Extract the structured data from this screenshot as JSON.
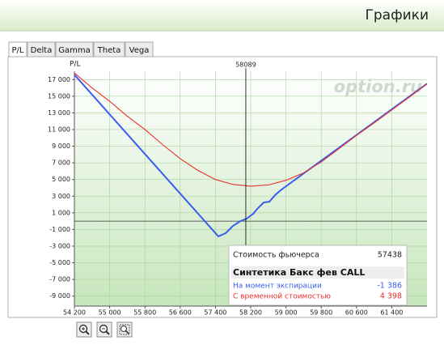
{
  "header": {
    "title": "Графики"
  },
  "tabs": [
    "P/L",
    "Delta",
    "Gamma",
    "Theta",
    "Vega"
  ],
  "chart_data": {
    "type": "line",
    "y_label": "P/L",
    "watermark": "option.ru",
    "xlim": [
      54200,
      62200
    ],
    "ylim": [
      -10200,
      18000
    ],
    "xticks": [
      {
        "value": 54200,
        "label": "54 200"
      },
      {
        "value": 55000,
        "label": "55 000"
      },
      {
        "value": 55800,
        "label": "55 800"
      },
      {
        "value": 56600,
        "label": "56 600"
      },
      {
        "value": 57400,
        "label": "57 400"
      },
      {
        "value": 58200,
        "label": "58 200"
      },
      {
        "value": 59000,
        "label": "59 000"
      },
      {
        "value": 59800,
        "label": "59 800"
      },
      {
        "value": 60600,
        "label": "60 600"
      },
      {
        "value": 61400,
        "label": "61 400"
      }
    ],
    "yticks": [
      {
        "value": 17000,
        "label": "17 000"
      },
      {
        "value": 15000,
        "label": "15 000"
      },
      {
        "value": 13000,
        "label": "13 000"
      },
      {
        "value": 11000,
        "label": "11 000"
      },
      {
        "value": 9000,
        "label": "9 000"
      },
      {
        "value": 7000,
        "label": "7 000"
      },
      {
        "value": 5000,
        "label": "5 000"
      },
      {
        "value": 3000,
        "label": "3 000"
      },
      {
        "value": 1000,
        "label": "1 000"
      },
      {
        "value": -1000,
        "label": "-1 000"
      },
      {
        "value": -3000,
        "label": "-3 000"
      },
      {
        "value": -5000,
        "label": "-5 000"
      },
      {
        "value": -7000,
        "label": "-7 000"
      },
      {
        "value": -9000,
        "label": "-9 000"
      }
    ],
    "grid": true,
    "crosshair": 58089,
    "series": [
      {
        "name": "На момент экспирации",
        "color": "#3a5cf0",
        "x": [
          54200,
          57466,
          57631,
          57797,
          57962,
          58109,
          58255,
          58347,
          58494,
          58622,
          58769,
          58898,
          62200
        ],
        "values": [
          17580,
          -1835,
          -1450,
          -575,
          0,
          300,
          880,
          1460,
          2240,
          2330,
          3210,
          3790,
          16510
        ]
      },
      {
        "name": "С временной стоимостью",
        "color": "#e8302a",
        "x": [
          54200,
          54600,
          55000,
          55400,
          55800,
          56200,
          56600,
          57000,
          57400,
          57800,
          58200,
          58600,
          59000,
          59400,
          59800,
          60200,
          60600,
          61000,
          61400,
          61800,
          62200
        ],
        "values": [
          17800,
          16000,
          14400,
          12600,
          11000,
          9200,
          7500,
          6100,
          5000,
          4400,
          4200,
          4350,
          4900,
          5800,
          7100,
          8700,
          10300,
          11800,
          13350,
          14900,
          16500
        ]
      }
    ]
  },
  "tooltip": {
    "price_label": "Стоимость фьючерса",
    "price": "57438",
    "title": "Синтетика Бакс фев CALL",
    "expiration_value": "-1 386",
    "time_value": "4 398"
  }
}
